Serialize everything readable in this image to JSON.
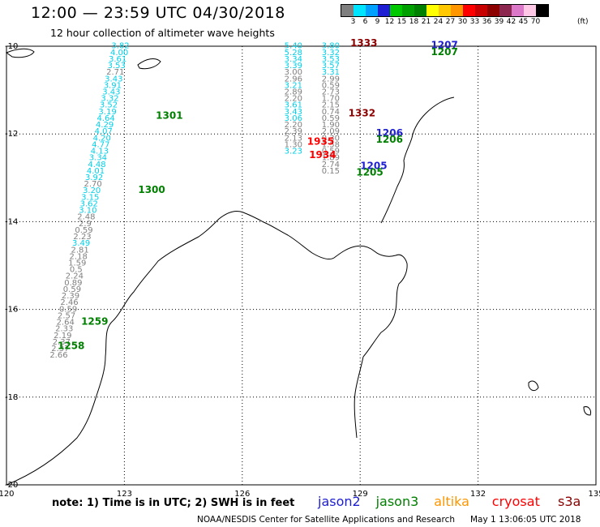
{
  "title": "12:00 — 23:59 UTC 04/30/2018",
  "subtitle": "12 hour collection of altimeter wave heights",
  "colorbar": {
    "colors": [
      "#7f7f7f",
      "#00e5ff",
      "#00a0ff",
      "#1e1ed2",
      "#00c800",
      "#00a000",
      "#008000",
      "#ffff00",
      "#ffc800",
      "#ff9600",
      "#ff0000",
      "#c80000",
      "#8c0000",
      "#8c2850",
      "#dc78c8",
      "#ffc8e6",
      "#000000"
    ],
    "labels": [
      "3",
      "6",
      "9",
      "12",
      "15",
      "18",
      "21",
      "24",
      "27",
      "30",
      "33",
      "36",
      "39",
      "42",
      "45",
      "70"
    ],
    "unit": "(ft)"
  },
  "axes": {
    "lat_labels": [
      "-10",
      "-12",
      "-14",
      "-16",
      "-18",
      "-20"
    ],
    "lon_labels": [
      "120",
      "123",
      "126",
      "129",
      "132",
      "135"
    ]
  },
  "tracks": [
    {
      "id": "track-a",
      "color": "#00d0e8",
      "points": [
        {
          "lon": 122.9,
          "lat": -10.05,
          "v": "3.82",
          "c": "#00d0e8"
        },
        {
          "lon": 122.87,
          "lat": -10.2,
          "v": "4.00",
          "c": "#00d0e8"
        },
        {
          "lon": 122.83,
          "lat": -10.35,
          "v": "3.61",
          "c": "#00d0e8"
        },
        {
          "lon": 122.8,
          "lat": -10.5,
          "v": "3.53",
          "c": "#00d0e8"
        },
        {
          "lon": 122.77,
          "lat": -10.65,
          "v": "2.71",
          "c": "#7f7f7f"
        },
        {
          "lon": 122.73,
          "lat": -10.8,
          "v": "3.43",
          "c": "#00d0e8"
        },
        {
          "lon": 122.7,
          "lat": -10.95,
          "v": "3.91",
          "c": "#00d0e8"
        },
        {
          "lon": 122.67,
          "lat": -11.1,
          "v": "3.43",
          "c": "#00d0e8"
        },
        {
          "lon": 122.63,
          "lat": -11.25,
          "v": "3.32",
          "c": "#00d0e8"
        },
        {
          "lon": 122.6,
          "lat": -11.4,
          "v": "3.52",
          "c": "#00d0e8"
        },
        {
          "lon": 122.57,
          "lat": -11.55,
          "v": "3.19",
          "c": "#00d0e8"
        },
        {
          "lon": 122.53,
          "lat": -11.7,
          "v": "4.64",
          "c": "#00d0e8"
        },
        {
          "lon": 122.5,
          "lat": -11.85,
          "v": "4.29",
          "c": "#00d0e8"
        },
        {
          "lon": 122.47,
          "lat": -12.0,
          "v": "4.07",
          "c": "#00d0e8"
        },
        {
          "lon": 122.43,
          "lat": -12.15,
          "v": "4.20",
          "c": "#00d0e8"
        },
        {
          "lon": 122.4,
          "lat": -12.3,
          "v": "4.77",
          "c": "#00d0e8"
        },
        {
          "lon": 122.37,
          "lat": -12.45,
          "v": "4.13",
          "c": "#00d0e8"
        },
        {
          "lon": 122.33,
          "lat": -12.6,
          "v": "3.34",
          "c": "#00d0e8"
        },
        {
          "lon": 122.3,
          "lat": -12.75,
          "v": "4.48",
          "c": "#00d0e8"
        },
        {
          "lon": 122.27,
          "lat": -12.9,
          "v": "4.01",
          "c": "#00d0e8"
        },
        {
          "lon": 122.23,
          "lat": -13.05,
          "v": "3.92",
          "c": "#00d0e8"
        },
        {
          "lon": 122.2,
          "lat": -13.2,
          "v": "2.70",
          "c": "#7f7f7f"
        },
        {
          "lon": 122.17,
          "lat": -13.35,
          "v": "3.20",
          "c": "#00d0e8"
        },
        {
          "lon": 122.13,
          "lat": -13.5,
          "v": "3.15",
          "c": "#00d0e8"
        },
        {
          "lon": 122.1,
          "lat": -13.65,
          "v": "3.62",
          "c": "#00d0e8"
        },
        {
          "lon": 122.07,
          "lat": -13.8,
          "v": "3.10",
          "c": "#00d0e8"
        },
        {
          "lon": 122.03,
          "lat": -13.95,
          "v": "2.48",
          "c": "#7f7f7f"
        },
        {
          "lon": 122.0,
          "lat": -14.1,
          "v": "2.9",
          "c": "#7f7f7f"
        },
        {
          "lon": 121.97,
          "lat": -14.25,
          "v": "0.59",
          "c": "#7f7f7f"
        },
        {
          "lon": 121.93,
          "lat": -14.4,
          "v": "2.23",
          "c": "#7f7f7f"
        },
        {
          "lon": 121.9,
          "lat": -14.55,
          "v": "3.49",
          "c": "#00d0e8"
        },
        {
          "lon": 121.87,
          "lat": -14.7,
          "v": "2.81",
          "c": "#7f7f7f"
        },
        {
          "lon": 121.83,
          "lat": -14.85,
          "v": "2.18",
          "c": "#7f7f7f"
        },
        {
          "lon": 121.8,
          "lat": -15.0,
          "v": "1.59",
          "c": "#7f7f7f"
        },
        {
          "lon": 121.77,
          "lat": -15.15,
          "v": "0.5",
          "c": "#7f7f7f"
        },
        {
          "lon": 121.73,
          "lat": -15.3,
          "v": "2.24",
          "c": "#7f7f7f"
        },
        {
          "lon": 121.7,
          "lat": -15.45,
          "v": "0.89",
          "c": "#7f7f7f"
        },
        {
          "lon": 121.67,
          "lat": -15.6,
          "v": "0.59",
          "c": "#7f7f7f"
        },
        {
          "lon": 121.63,
          "lat": -15.75,
          "v": "2.39",
          "c": "#7f7f7f"
        },
        {
          "lon": 121.6,
          "lat": -15.9,
          "v": "2.46",
          "c": "#7f7f7f"
        },
        {
          "lon": 121.57,
          "lat": -16.05,
          "v": "0.59",
          "c": "#7f7f7f"
        },
        {
          "lon": 121.53,
          "lat": -16.2,
          "v": "2.57",
          "c": "#7f7f7f"
        },
        {
          "lon": 121.5,
          "lat": -16.35,
          "v": "2.64",
          "c": "#7f7f7f"
        },
        {
          "lon": 121.47,
          "lat": -16.5,
          "v": "2.33",
          "c": "#7f7f7f"
        },
        {
          "lon": 121.43,
          "lat": -16.65,
          "v": "2.19",
          "c": "#7f7f7f"
        },
        {
          "lon": 121.4,
          "lat": -16.8,
          "v": "2.37",
          "c": "#7f7f7f"
        },
        {
          "lon": 121.37,
          "lat": -16.95,
          "v": "2.37",
          "c": "#7f7f7f"
        },
        {
          "lon": 121.33,
          "lat": -17.1,
          "v": "2.66",
          "c": "#7f7f7f"
        }
      ]
    },
    {
      "id": "track-b",
      "color": "#00d0e8",
      "points": [
        {
          "lon": 127.3,
          "lat": -10.05,
          "v": "5.40",
          "c": "#00d0e8"
        },
        {
          "lon": 127.3,
          "lat": -10.2,
          "v": "5.28",
          "c": "#00d0e8"
        },
        {
          "lon": 127.3,
          "lat": -10.35,
          "v": "3.34",
          "c": "#00d0e8"
        },
        {
          "lon": 127.3,
          "lat": -10.5,
          "v": "3.39",
          "c": "#00d0e8"
        },
        {
          "lon": 127.3,
          "lat": -10.65,
          "v": "3.00",
          "c": "#7f7f7f"
        },
        {
          "lon": 127.3,
          "lat": -10.8,
          "v": "2.96",
          "c": "#7f7f7f"
        },
        {
          "lon": 127.3,
          "lat": -10.95,
          "v": "3.21",
          "c": "#00d0e8"
        },
        {
          "lon": 127.3,
          "lat": -11.1,
          "v": "2.89",
          "c": "#7f7f7f"
        },
        {
          "lon": 127.3,
          "lat": -11.25,
          "v": "2.20",
          "c": "#7f7f7f"
        },
        {
          "lon": 127.3,
          "lat": -11.4,
          "v": "3.61",
          "c": "#00d0e8"
        },
        {
          "lon": 127.3,
          "lat": -11.55,
          "v": "3.43",
          "c": "#00d0e8"
        },
        {
          "lon": 127.3,
          "lat": -11.7,
          "v": "3.06",
          "c": "#00d0e8"
        },
        {
          "lon": 127.3,
          "lat": -11.85,
          "v": "2.20",
          "c": "#7f7f7f"
        },
        {
          "lon": 127.3,
          "lat": -12.0,
          "v": "2.39",
          "c": "#7f7f7f"
        },
        {
          "lon": 127.3,
          "lat": -12.15,
          "v": "2.13",
          "c": "#7f7f7f"
        },
        {
          "lon": 127.3,
          "lat": -12.3,
          "v": "1.30",
          "c": "#7f7f7f"
        },
        {
          "lon": 127.3,
          "lat": -12.45,
          "v": "3.23",
          "c": "#00d0e8"
        }
      ]
    },
    {
      "id": "track-c",
      "color": "#00d0e8",
      "points": [
        {
          "lon": 128.25,
          "lat": -10.05,
          "v": "3.80",
          "c": "#00d0e8"
        },
        {
          "lon": 128.25,
          "lat": -10.2,
          "v": "3.32",
          "c": "#00d0e8"
        },
        {
          "lon": 128.25,
          "lat": -10.35,
          "v": "3.53",
          "c": "#00d0e8"
        },
        {
          "lon": 128.25,
          "lat": -10.5,
          "v": "3.57",
          "c": "#00d0e8"
        },
        {
          "lon": 128.25,
          "lat": -10.65,
          "v": "3.31",
          "c": "#00d0e8"
        },
        {
          "lon": 128.25,
          "lat": -10.8,
          "v": "2.99",
          "c": "#7f7f7f"
        },
        {
          "lon": 128.25,
          "lat": -10.95,
          "v": "0.59",
          "c": "#7f7f7f"
        },
        {
          "lon": 128.25,
          "lat": -11.1,
          "v": "2.73",
          "c": "#7f7f7f"
        },
        {
          "lon": 128.25,
          "lat": -11.25,
          "v": "1.70",
          "c": "#7f7f7f"
        },
        {
          "lon": 128.25,
          "lat": -11.4,
          "v": "2.15",
          "c": "#7f7f7f"
        },
        {
          "lon": 128.25,
          "lat": -11.55,
          "v": "0.74",
          "c": "#7f7f7f"
        },
        {
          "lon": 128.25,
          "lat": -11.7,
          "v": "0.59",
          "c": "#7f7f7f"
        },
        {
          "lon": 128.25,
          "lat": -11.85,
          "v": "1.90",
          "c": "#7f7f7f"
        },
        {
          "lon": 128.25,
          "lat": -12.0,
          "v": "2.09",
          "c": "#7f7f7f"
        },
        {
          "lon": 128.25,
          "lat": -12.15,
          "v": "0.30",
          "c": "#7f7f7f"
        },
        {
          "lon": 128.25,
          "lat": -12.3,
          "v": "1.58",
          "c": "#7f7f7f"
        },
        {
          "lon": 128.25,
          "lat": -12.45,
          "v": "0.59",
          "c": "#7f7f7f"
        },
        {
          "lon": 128.25,
          "lat": -12.6,
          "v": "1.89",
          "c": "#7f7f7f"
        },
        {
          "lon": 128.25,
          "lat": -12.75,
          "v": "2.74",
          "c": "#7f7f7f"
        },
        {
          "lon": 128.25,
          "lat": -12.9,
          "v": "0.15",
          "c": "#7f7f7f"
        }
      ]
    }
  ],
  "labels": [
    {
      "text": "1333",
      "lon": 128.75,
      "lat": -10.0,
      "color": "#8c0000"
    },
    {
      "text": "1207",
      "lon": 130.8,
      "lat": -10.05,
      "color": "#1e1ed2"
    },
    {
      "text": "1207",
      "lon": 130.8,
      "lat": -10.2,
      "color": "#008000"
    },
    {
      "text": "1301",
      "lon": 123.8,
      "lat": -11.65,
      "color": "#008000"
    },
    {
      "text": "1332",
      "lon": 128.7,
      "lat": -11.6,
      "color": "#8c0000"
    },
    {
      "text": "1206",
      "lon": 129.4,
      "lat": -12.05,
      "color": "#1e1ed2"
    },
    {
      "text": "1206",
      "lon": 129.4,
      "lat": -12.2,
      "color": "#008000"
    },
    {
      "text": "1935",
      "lon": 127.65,
      "lat": -12.25,
      "color": "#ff0000"
    },
    {
      "text": "1934",
      "lon": 127.7,
      "lat": -12.55,
      "color": "#ff0000"
    },
    {
      "text": "1205",
      "lon": 129.0,
      "lat": -12.8,
      "color": "#1e1ed2"
    },
    {
      "text": "1205",
      "lon": 128.9,
      "lat": -12.95,
      "color": "#008000"
    },
    {
      "text": "1300",
      "lon": 123.35,
      "lat": -13.35,
      "color": "#008000"
    },
    {
      "text": "1259",
      "lon": 121.9,
      "lat": -16.35,
      "color": "#008000"
    },
    {
      "text": "1258",
      "lon": 121.3,
      "lat": -16.9,
      "color": "#008000"
    }
  ],
  "footer": {
    "note": "note:  1) Time is in UTC;  2) SWH is in feet",
    "legend": [
      {
        "name": "jason2",
        "color": "#1e1ed2"
      },
      {
        "name": "jason3",
        "color": "#008000"
      },
      {
        "name": "altika",
        "color": "#ff9600"
      },
      {
        "name": "cryosat",
        "color": "#ff0000"
      },
      {
        "name": "s3a",
        "color": "#8c0000"
      }
    ],
    "credit": "NOAA/NESDIS Center for Satellite Applications and Research",
    "timestamp": "May  1 13:06:05 UTC 2018"
  }
}
